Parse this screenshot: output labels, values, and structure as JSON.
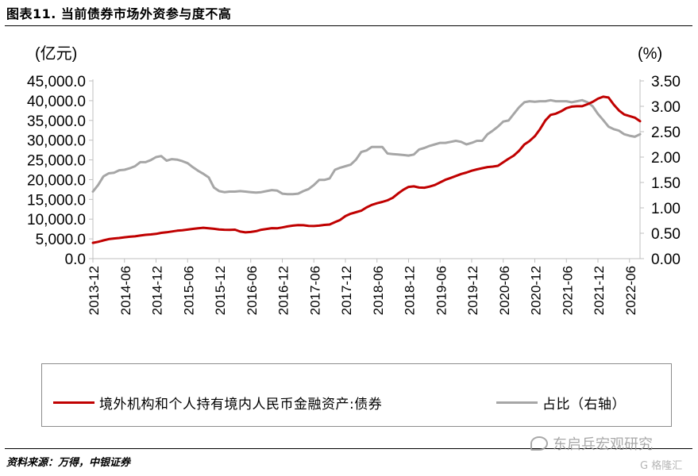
{
  "figure": {
    "title": "图表11. 当前债券市场外资参与度不高",
    "source": "资料来源：万得，中银证券"
  },
  "watermark": {
    "text": "东启兵宏观研究",
    "badge": "G 格隆汇",
    "icon": "wechat-icon"
  },
  "colors": {
    "red": "#c00000",
    "gray": "#a6a6a6",
    "axis": "#bfbfbf"
  },
  "chart_data": {
    "type": "line",
    "title": "",
    "y_left_unit": "(亿元)",
    "y_right_unit": "(%)",
    "y_left_lim": [
      0,
      45000
    ],
    "y_right_lim": [
      0,
      3.5
    ],
    "y_left_ticks": [
      "0.0",
      "5,000.0",
      "10,000.0",
      "15,000.0",
      "20,000.0",
      "25,000.0",
      "30,000.0",
      "35,000.0",
      "40,000.0",
      "45,000.0"
    ],
    "y_right_ticks": [
      "0.00",
      "0.50",
      "1.00",
      "1.50",
      "2.00",
      "2.50",
      "3.00",
      "3.50"
    ],
    "x_tick_labels": [
      "2013-12",
      "2014-06",
      "2014-12",
      "2015-06",
      "2015-12",
      "2016-06",
      "2016-12",
      "2017-06",
      "2017-12",
      "2018-06",
      "2018-12",
      "2019-06",
      "2019-12",
      "2020-06",
      "2020-12",
      "2021-06",
      "2021-12",
      "2022-06"
    ],
    "x_start": "2013-12",
    "x_end": "2022-09",
    "grid": false,
    "legend_position": "bottom",
    "series": [
      {
        "name": "境外机构和个人持有境内人民币金融资产:债券",
        "axis": "left",
        "color": "#c00000",
        "values": [
          3990,
          4260,
          4630,
          4950,
          5110,
          5220,
          5400,
          5550,
          5650,
          5850,
          6030,
          6130,
          6270,
          6520,
          6670,
          6880,
          7070,
          7190,
          7350,
          7540,
          7700,
          7820,
          7690,
          7560,
          7400,
          7310,
          7290,
          7330,
          6850,
          6640,
          6760,
          6960,
          7310,
          7520,
          7710,
          7680,
          7890,
          8160,
          8360,
          8490,
          8450,
          8300,
          8250,
          8350,
          8530,
          8630,
          9240,
          9800,
          10760,
          11380,
          11760,
          12140,
          12960,
          13610,
          14030,
          14370,
          14770,
          15410,
          16500,
          17440,
          18160,
          18310,
          18000,
          17960,
          18240,
          18650,
          19300,
          19960,
          20440,
          20930,
          21430,
          21800,
          22250,
          22600,
          22900,
          23190,
          23300,
          23500,
          24400,
          25300,
          26100,
          27300,
          28900,
          29800,
          31000,
          32800,
          35000,
          36400,
          36700,
          37300,
          38100,
          38500,
          38600,
          38600,
          39100,
          39700,
          40500,
          41000,
          40800,
          39000,
          37500,
          36500,
          36100,
          35700,
          34800
        ]
      },
      {
        "name": "占比（右轴）",
        "axis": "right",
        "color": "#a6a6a6",
        "values": [
          1.32,
          1.45,
          1.62,
          1.68,
          1.69,
          1.74,
          1.75,
          1.78,
          1.82,
          1.9,
          1.9,
          1.94,
          2.0,
          2.02,
          1.93,
          1.96,
          1.95,
          1.92,
          1.88,
          1.8,
          1.73,
          1.67,
          1.6,
          1.4,
          1.33,
          1.31,
          1.32,
          1.32,
          1.33,
          1.32,
          1.31,
          1.3,
          1.31,
          1.33,
          1.35,
          1.34,
          1.28,
          1.27,
          1.27,
          1.28,
          1.33,
          1.37,
          1.45,
          1.55,
          1.55,
          1.58,
          1.75,
          1.79,
          1.82,
          1.85,
          1.95,
          2.1,
          2.13,
          2.2,
          2.2,
          2.2,
          2.07,
          2.06,
          2.05,
          2.04,
          2.03,
          2.05,
          2.15,
          2.18,
          2.22,
          2.25,
          2.28,
          2.28,
          2.3,
          2.32,
          2.3,
          2.25,
          2.28,
          2.32,
          2.32,
          2.45,
          2.52,
          2.6,
          2.7,
          2.72,
          2.85,
          2.98,
          3.08,
          3.1,
          3.09,
          3.1,
          3.1,
          3.12,
          3.1,
          3.1,
          3.1,
          3.08,
          3.1,
          3.12,
          3.08,
          3.0,
          2.85,
          2.73,
          2.6,
          2.55,
          2.52,
          2.45,
          2.42,
          2.4,
          2.45
        ]
      }
    ]
  },
  "legend": {
    "red_label": "境外机构和个人持有境内人民币金融资产:债券",
    "gray_label": "占比（右轴）"
  }
}
